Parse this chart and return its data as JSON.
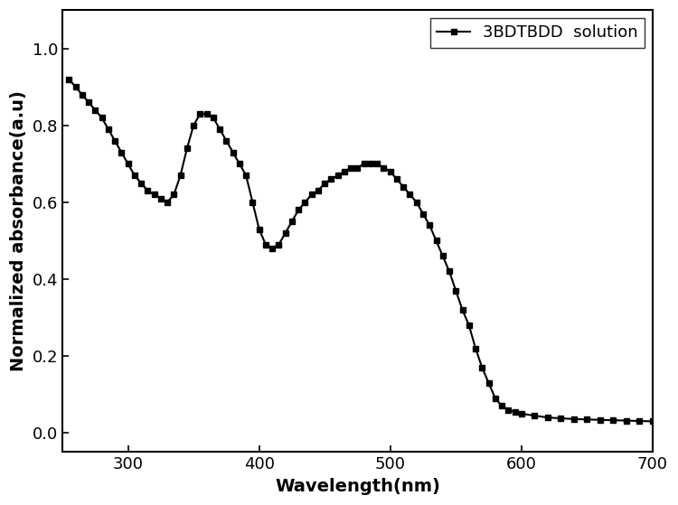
{
  "wavelength": [
    255,
    260,
    265,
    270,
    275,
    280,
    285,
    290,
    295,
    300,
    305,
    310,
    315,
    320,
    325,
    330,
    335,
    340,
    345,
    350,
    355,
    360,
    365,
    370,
    375,
    380,
    385,
    390,
    395,
    400,
    405,
    410,
    415,
    420,
    425,
    430,
    435,
    440,
    445,
    450,
    455,
    460,
    465,
    470,
    475,
    480,
    485,
    490,
    495,
    500,
    505,
    510,
    515,
    520,
    525,
    530,
    535,
    540,
    545,
    550,
    555,
    560,
    565,
    570,
    575,
    580,
    585,
    590,
    595,
    600,
    610,
    620,
    630,
    640,
    650,
    660,
    670,
    680,
    690,
    700
  ],
  "absorbance": [
    0.92,
    0.9,
    0.88,
    0.86,
    0.84,
    0.82,
    0.79,
    0.76,
    0.73,
    0.7,
    0.67,
    0.65,
    0.63,
    0.62,
    0.61,
    0.6,
    0.62,
    0.67,
    0.74,
    0.8,
    0.83,
    0.83,
    0.82,
    0.79,
    0.76,
    0.73,
    0.7,
    0.67,
    0.6,
    0.53,
    0.49,
    0.48,
    0.49,
    0.52,
    0.55,
    0.58,
    0.6,
    0.62,
    0.63,
    0.65,
    0.66,
    0.67,
    0.68,
    0.69,
    0.69,
    0.7,
    0.7,
    0.7,
    0.69,
    0.68,
    0.66,
    0.64,
    0.62,
    0.6,
    0.57,
    0.54,
    0.5,
    0.46,
    0.42,
    0.37,
    0.32,
    0.28,
    0.22,
    0.17,
    0.13,
    0.09,
    0.07,
    0.06,
    0.055,
    0.05,
    0.045,
    0.04,
    0.038,
    0.036,
    0.035,
    0.034,
    0.033,
    0.032,
    0.031,
    0.03
  ],
  "line_color": "#000000",
  "marker": "s",
  "marker_size": 4,
  "marker_color": "#000000",
  "legend_label": "3BDTBDD  solution",
  "xlabel": "Wavelength(nm)",
  "ylabel": "Normalized absorbance(a.u)",
  "xlim": [
    250,
    700
  ],
  "ylim": [
    -0.05,
    1.1
  ],
  "xticks": [
    300,
    400,
    500,
    600,
    700
  ],
  "yticks": [
    0.0,
    0.2,
    0.4,
    0.6,
    0.8,
    1.0
  ],
  "figsize": [
    7.5,
    5.59
  ],
  "dpi": 100,
  "legend_fontsize": 13,
  "axis_label_fontsize": 14,
  "tick_fontsize": 13,
  "linewidth": 1.5
}
